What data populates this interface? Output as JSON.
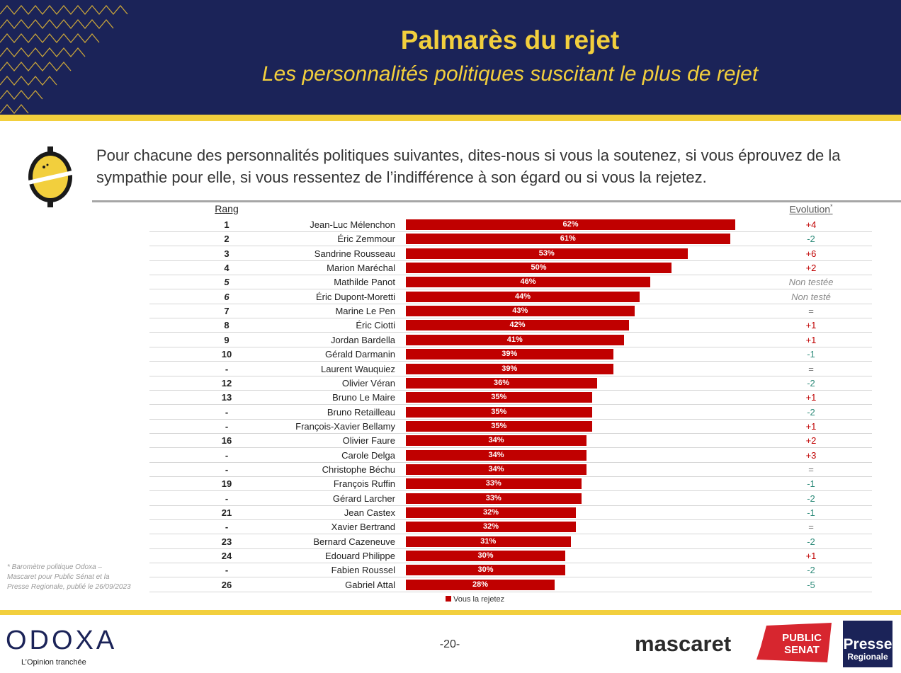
{
  "header": {
    "title": "Palmarès du rejet",
    "subtitle": "Les personnalités politiques suscitant le plus de rejet"
  },
  "question": "Pour chacune des personnalités politiques suivantes, dites-nous si vous la soutenez, si vous éprouvez de la sympathie pour elle, si vous ressentez de l’indifférence à son égard ou si vous la rejetez.",
  "chart_data": {
    "type": "bar",
    "orientation": "horizontal",
    "columns": {
      "rank": "Rang",
      "evolution": "Evolution",
      "evolution_mark": "*"
    },
    "legend": "Vous la rejetez",
    "series_color": "#c00000",
    "xlim": [
      0,
      62
    ],
    "categories": [
      "Jean-Luc Mélenchon",
      "Éric Zemmour",
      "Sandrine Rousseau",
      "Marion Maréchal",
      "Mathilde Panot",
      "Éric Dupont-Moretti",
      "Marine Le Pen",
      "Éric Ciotti",
      "Jordan Bardella",
      "Gérald Darmanin",
      "Laurent Wauquiez",
      "Olivier Véran",
      "Bruno Le Maire",
      "Bruno Retailleau",
      "François-Xavier Bellamy",
      "Olivier Faure",
      "Carole Delga",
      "Christophe Béchu",
      "François Ruffin",
      "Gérard Larcher",
      "Jean Castex",
      "Xavier Bertrand",
      "Bernard Cazeneuve",
      "Edouard Philippe",
      "Fabien Roussel",
      "Gabriel Attal"
    ],
    "values": [
      62,
      61,
      53,
      50,
      46,
      44,
      43,
      42,
      41,
      39,
      39,
      36,
      35,
      35,
      35,
      34,
      34,
      34,
      33,
      33,
      32,
      32,
      31,
      30,
      30,
      28
    ],
    "value_labels": [
      "62%",
      "61%",
      "53%",
      "50%",
      "46%",
      "44%",
      "43%",
      "42%",
      "41%",
      "39%",
      "39%",
      "36%",
      "35%",
      "35%",
      "35%",
      "34%",
      "34%",
      "34%",
      "33%",
      "33%",
      "32%",
      "32%",
      "31%",
      "30%",
      "30%",
      "28%"
    ],
    "ranks": [
      "1",
      "2",
      "3",
      "4",
      "5",
      "6",
      "7",
      "8",
      "9",
      "10",
      "-",
      "12",
      "13",
      "-",
      "-",
      "16",
      "-",
      "-",
      "19",
      "-",
      "21",
      "-",
      "23",
      "24",
      "-",
      "26"
    ],
    "rank_italic": [
      false,
      false,
      false,
      false,
      true,
      true,
      false,
      false,
      false,
      false,
      false,
      false,
      false,
      false,
      false,
      false,
      false,
      false,
      false,
      false,
      false,
      false,
      false,
      false,
      false,
      false
    ],
    "evolution": [
      "+4",
      "-2",
      "+6",
      "+2",
      "Non testée",
      "Non testé",
      "=",
      "+1",
      "+1",
      "-1",
      "=",
      "-2",
      "+1",
      "-2",
      "+1",
      "+2",
      "+3",
      "=",
      "-1",
      "-2",
      "-1",
      "=",
      "-2",
      "+1",
      "-2",
      "-5"
    ],
    "evolution_colors": {
      "up": "#c00000",
      "down": "#2e8b7a",
      "neutral": "#777777"
    }
  },
  "footnote": "* Baromètre politique Odoxa – Mascaret pour Public Sénat et la Presse Regionale, publié le 26/09/2023",
  "footer": {
    "brand_left": "ODOXA",
    "tagline": "L’Opinion tranchée",
    "page_number": "-20-",
    "partner_1": "mascaret",
    "partner_2_line1": "PUBLIC",
    "partner_2_line2": "SENAT",
    "partner_3_line1": "Presse",
    "partner_3_line2": "Regionale"
  }
}
